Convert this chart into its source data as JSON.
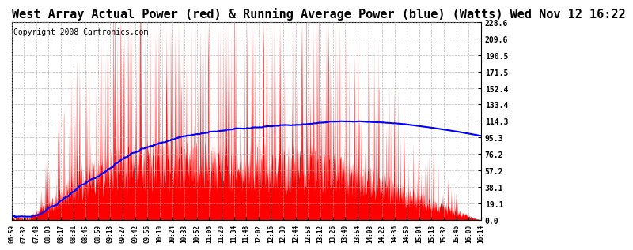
{
  "title": "West Array Actual Power (red) & Running Average Power (blue) (Watts) Wed Nov 12 16:22",
  "copyright": "Copyright 2008 Cartronics.com",
  "ymax": 228.6,
  "yticks": [
    0.0,
    19.1,
    38.1,
    57.2,
    76.2,
    95.3,
    114.3,
    133.4,
    152.4,
    171.5,
    190.5,
    209.6,
    228.6
  ],
  "xtick_labels": [
    "06:59",
    "07:32",
    "07:48",
    "08:03",
    "08:17",
    "08:31",
    "08:45",
    "08:59",
    "09:13",
    "09:27",
    "09:42",
    "09:56",
    "10:10",
    "10:24",
    "10:38",
    "10:52",
    "11:06",
    "11:20",
    "11:34",
    "11:48",
    "12:02",
    "12:16",
    "12:30",
    "12:44",
    "12:58",
    "13:12",
    "13:26",
    "13:40",
    "13:54",
    "14:08",
    "14:22",
    "14:36",
    "14:50",
    "15:04",
    "15:18",
    "15:32",
    "15:46",
    "16:00",
    "16:14"
  ],
  "bg_color": "#ffffff",
  "actual_color": "#ff0000",
  "avg_color": "#0000ff",
  "grid_color": "#aaaaaa",
  "title_fontsize": 11,
  "copyright_fontsize": 7
}
